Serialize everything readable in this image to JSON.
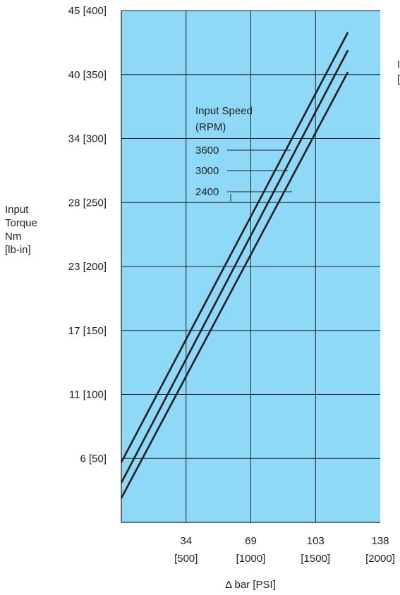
{
  "chart_data": {
    "type": "line",
    "title": "",
    "xlabel": "Δ bar [PSI]",
    "ylabel": [
      "Input",
      "Torque",
      "Nm",
      "[lb-in]"
    ],
    "xlim": [
      0,
      2000
    ],
    "ylim": [
      0,
      400
    ],
    "x_ticks": [
      {
        "value": 500,
        "line1": "34",
        "line2": "[500]"
      },
      {
        "value": 1000,
        "line1": "69",
        "line2": "[1000]"
      },
      {
        "value": 1500,
        "line1": "103",
        "line2": "[1500]"
      },
      {
        "value": 2000,
        "line1": "138",
        "line2": "[2000]"
      }
    ],
    "y_ticks": [
      {
        "value": 50,
        "label": "6 [50]"
      },
      {
        "value": 100,
        "label": "11 [100]"
      },
      {
        "value": 150,
        "label": "17 [150]"
      },
      {
        "value": 200,
        "label": "23 [200]"
      },
      {
        "value": 250,
        "label": "28 [250]"
      },
      {
        "value": 300,
        "label": "34 [300]"
      },
      {
        "value": 350,
        "label": "40 [350]"
      },
      {
        "value": 400,
        "label": "45 [400]"
      }
    ],
    "legend_title": [
      "Input Speed",
      "(RPM)"
    ],
    "series": [
      {
        "name": "3600",
        "x": [
          0,
          1750
        ],
        "y": [
          47,
          383
        ]
      },
      {
        "name": "3000",
        "x": [
          0,
          1750
        ],
        "y": [
          31,
          369
        ]
      },
      {
        "name": "2400",
        "x": [
          0,
          1750
        ],
        "y": [
          19,
          352
        ]
      }
    ],
    "grid": true,
    "colors": {
      "plot_bg": "#8ed8f8",
      "line": "#231f20",
      "grid": "#231f20"
    },
    "edge_label": [
      "I",
      "["
    ]
  }
}
